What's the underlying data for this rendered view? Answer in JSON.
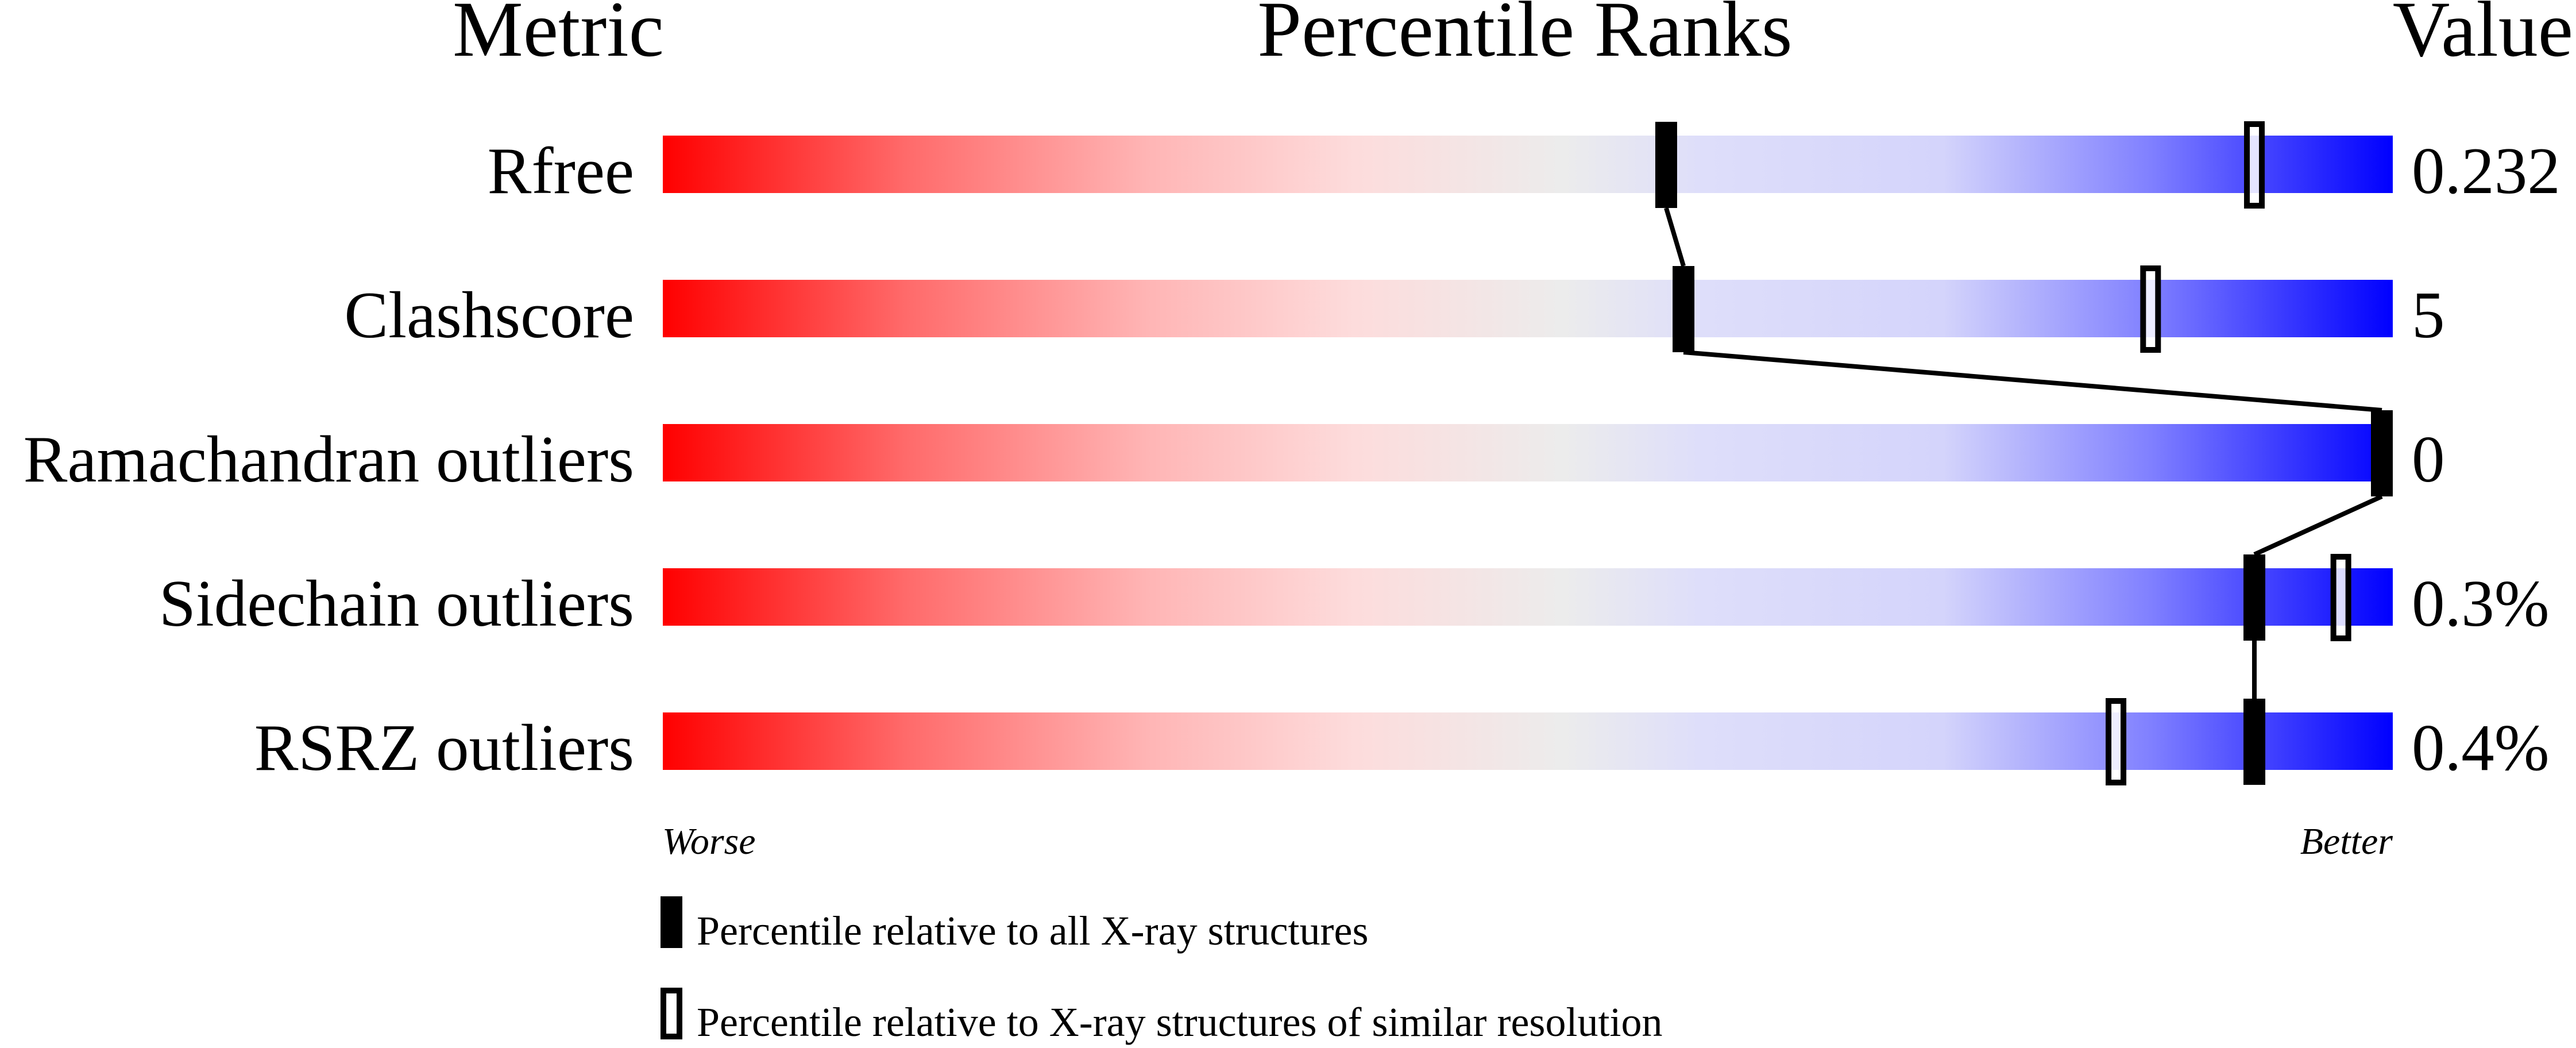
{
  "chart_data": {
    "type": "percentile-bar",
    "headers": {
      "metric": "Metric",
      "ranks": "Percentile Ranks",
      "value": "Value"
    },
    "xlim": [
      0,
      100
    ],
    "rows": [
      {
        "metric": "Rfree",
        "value": "0.232",
        "percentile_all": 58,
        "percentile_similar": 92
      },
      {
        "metric": "Clashscore",
        "value": "5",
        "percentile_all": 59,
        "percentile_similar": 86
      },
      {
        "metric": "Ramachandran outliers",
        "value": "0",
        "percentile_all": 100,
        "percentile_similar": null
      },
      {
        "metric": "Sidechain outliers",
        "value": "0.3%",
        "percentile_all": 92,
        "percentile_similar": 97
      },
      {
        "metric": "RSRZ outliers",
        "value": "0.4%",
        "percentile_all": 92,
        "percentile_similar": 84
      }
    ],
    "axis_labels": {
      "left": "Worse",
      "right": "Better"
    },
    "legend": [
      {
        "marker": "filled",
        "label": "Percentile relative to all X-ray structures"
      },
      {
        "marker": "open",
        "label": "Percentile relative to X-ray structures of similar resolution"
      }
    ],
    "colors": {
      "worse": "#ff0000",
      "middle": "#eeeeee",
      "better": "#0000ff",
      "marker": "#000000"
    }
  }
}
